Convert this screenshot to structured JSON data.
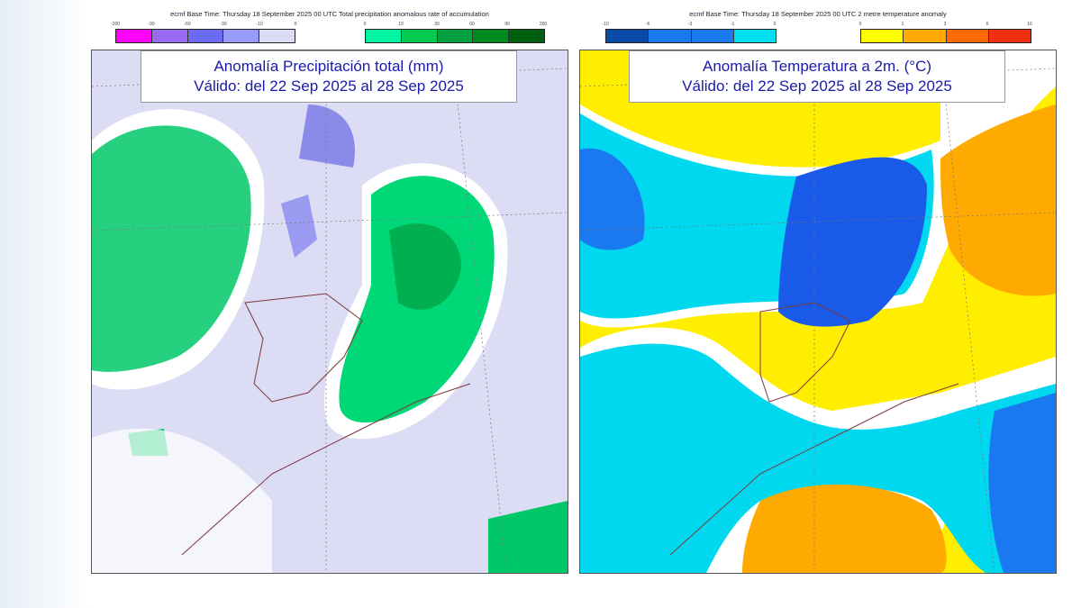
{
  "left_panel": {
    "header": "ecmf  Base Time: Thursday 18 September 2025 00 UTC Total precipitation anomalous rate of accumulation",
    "title_line1": "Anomalía Precipitación total (mm)",
    "title_line2": "Válido: del 22 Sep 2025 al 28 Sep 2025",
    "neg_ticks": [
      "-200",
      "-90",
      "-60",
      "-30",
      "-10",
      "0"
    ],
    "pos_ticks": [
      "0",
      "10",
      "30",
      "60",
      "90",
      "200"
    ],
    "neg_colors": [
      "#ff00ff",
      "#9a6af0",
      "#6a6af5",
      "#9a9af8",
      "#dcdcf5"
    ],
    "pos_colors": [
      "#00f5a0",
      "#00c850",
      "#00a040",
      "#008a20",
      "#006010"
    ]
  },
  "right_panel": {
    "header": "ecmf  Base Time: Thursday 18 September 2025 00 UTC 2 metre temperature anomaly",
    "title_line1": "Anomalía Temperatura a 2m. (°C)",
    "title_line2": "Válido: del 22 Sep 2025 al 28 Sep 2025",
    "neg_ticks": [
      "-10",
      "-6",
      "-3",
      "-1",
      "0"
    ],
    "pos_ticks": [
      "0",
      "1",
      "3",
      "6",
      "10"
    ],
    "neg_colors": [
      "#0a4aa8",
      "#1a78f0",
      "#1a78f0",
      "#00e0f0"
    ],
    "pos_colors": [
      "#ffff00",
      "#ffaa00",
      "#ff6a00",
      "#f03010"
    ]
  }
}
